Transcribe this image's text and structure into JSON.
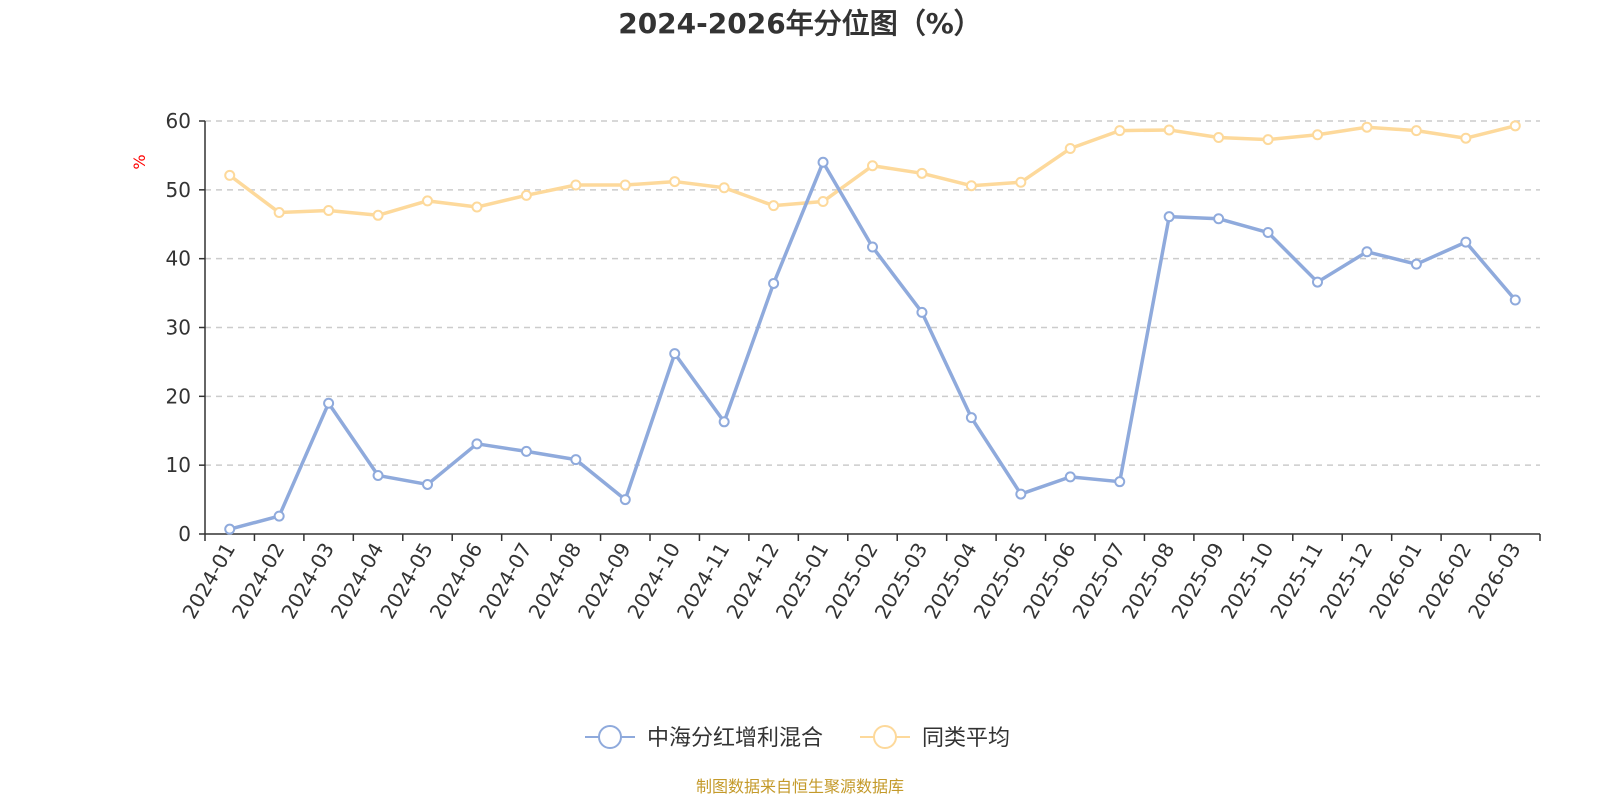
{
  "chart_data": {
    "type": "line",
    "title": "2024-2026年分位图（%）",
    "ylabel": "%",
    "xlabel": "",
    "ylim": [
      0,
      60
    ],
    "yticks": [
      0,
      10,
      20,
      30,
      40,
      50,
      60
    ],
    "grid": true,
    "legend_position": "bottom-center",
    "categories": [
      "2024-01",
      "2024-02",
      "2024-03",
      "2024-04",
      "2024-05",
      "2024-06",
      "2024-07",
      "2024-08",
      "2024-09",
      "2024-10",
      "2024-11",
      "2024-12",
      "2025-01",
      "2025-02",
      "2025-03",
      "2025-04",
      "2025-05",
      "2025-06",
      "2025-07",
      "2025-08",
      "2025-09",
      "2025-10",
      "2025-11",
      "2025-12",
      "2026-01",
      "2026-02",
      "2026-03"
    ],
    "series": [
      {
        "name": "中海分红增利混合",
        "color": "#8faadc",
        "values": [
          0.7,
          2.6,
          19.0,
          8.5,
          7.2,
          13.1,
          12.0,
          10.8,
          5.0,
          26.2,
          16.3,
          36.4,
          54.0,
          41.7,
          32.2,
          16.9,
          5.8,
          8.3,
          7.6,
          46.1,
          45.8,
          43.8,
          36.6,
          41.0,
          39.2,
          42.4,
          34.0
        ]
      },
      {
        "name": "同类平均",
        "color": "#fdd99b",
        "values": [
          52.1,
          46.7,
          47.0,
          46.3,
          48.4,
          47.5,
          49.2,
          50.7,
          50.7,
          51.2,
          50.3,
          47.7,
          48.3,
          53.5,
          52.4,
          50.6,
          51.1,
          56.0,
          58.6,
          58.7,
          57.6,
          57.3,
          58.0,
          59.1,
          58.6,
          57.5,
          59.3
        ]
      }
    ]
  },
  "source": "制图数据来自恒生聚源数据库"
}
